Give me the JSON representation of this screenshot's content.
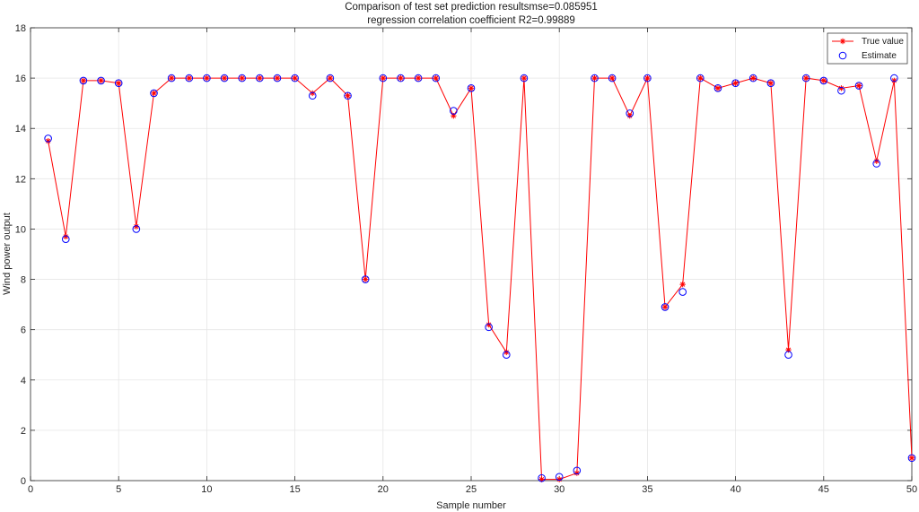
{
  "chart_data": {
    "type": "line",
    "title": [
      "Comparison of test set prediction resultsmse=0.085951",
      "regression correlation coefficient R2=0.99889"
    ],
    "xlabel": "Sample number",
    "ylabel": "Wind power output",
    "xlim": [
      0,
      50
    ],
    "ylim": [
      0,
      18
    ],
    "xticks": [
      0,
      5,
      10,
      15,
      20,
      25,
      30,
      35,
      40,
      45,
      50
    ],
    "yticks": [
      0,
      2,
      4,
      6,
      8,
      10,
      12,
      14,
      16,
      18
    ],
    "grid": true,
    "legend_position": "top-right",
    "x": [
      1,
      2,
      3,
      4,
      5,
      6,
      7,
      8,
      9,
      10,
      11,
      12,
      13,
      14,
      15,
      16,
      17,
      18,
      19,
      20,
      21,
      22,
      23,
      24,
      25,
      26,
      27,
      28,
      29,
      30,
      31,
      32,
      33,
      34,
      35,
      36,
      37,
      38,
      39,
      40,
      41,
      42,
      43,
      44,
      45,
      46,
      47,
      48,
      49,
      50
    ],
    "series": [
      {
        "name": "True value",
        "color": "#ff0000",
        "marker": "asterisk",
        "values": [
          13.5,
          9.7,
          15.9,
          15.9,
          15.8,
          10.1,
          15.4,
          16.0,
          16.0,
          16.0,
          16.0,
          16.0,
          16.0,
          16.0,
          16.0,
          15.4,
          16.0,
          15.3,
          8.0,
          16.0,
          16.0,
          16.0,
          16.0,
          14.5,
          15.6,
          6.2,
          5.1,
          16.0,
          0.05,
          0.05,
          0.3,
          16.0,
          16.0,
          14.5,
          16.0,
          6.9,
          7.8,
          16.0,
          15.6,
          15.8,
          16.0,
          15.8,
          5.2,
          16.0,
          15.9,
          15.6,
          15.7,
          12.7,
          15.9,
          0.9
        ]
      },
      {
        "name": "Estimate",
        "color": "#0000ff",
        "marker": "circle",
        "values": [
          13.6,
          9.6,
          15.9,
          15.9,
          15.8,
          10.0,
          15.4,
          16.0,
          16.0,
          16.0,
          16.0,
          16.0,
          16.0,
          16.0,
          16.0,
          15.3,
          16.0,
          15.3,
          8.0,
          16.0,
          16.0,
          16.0,
          16.0,
          14.7,
          15.6,
          6.1,
          5.0,
          16.0,
          0.1,
          0.15,
          0.4,
          16.0,
          16.0,
          14.6,
          16.0,
          6.9,
          7.5,
          16.0,
          15.6,
          15.8,
          16.0,
          15.8,
          5.0,
          16.0,
          15.9,
          15.5,
          15.7,
          12.6,
          16.0,
          0.9
        ]
      }
    ]
  }
}
